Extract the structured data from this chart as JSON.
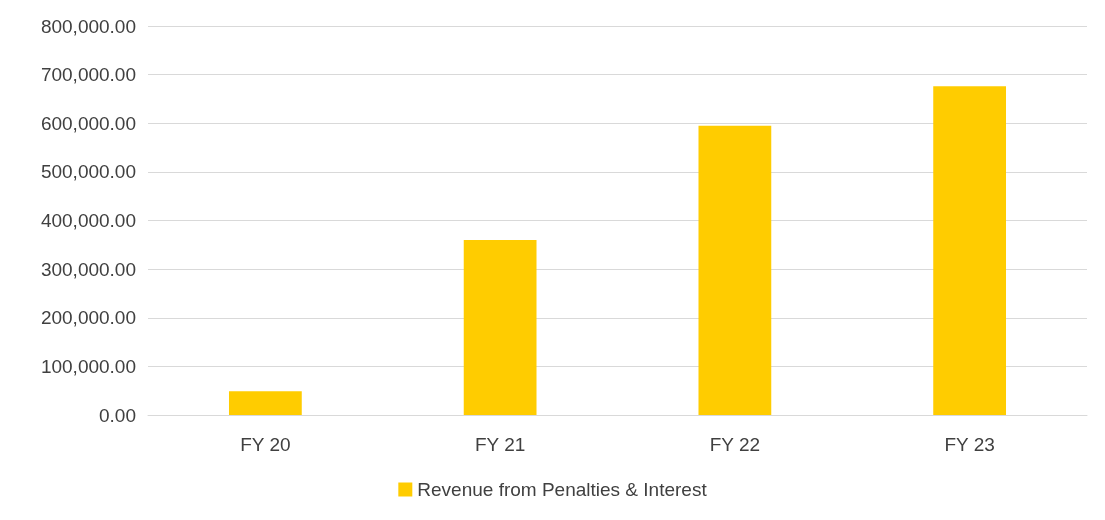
{
  "chart_data": {
    "type": "bar",
    "categories": [
      "FY 20",
      "FY 21",
      "FY 22",
      "FY 23"
    ],
    "series": [
      {
        "name": "Revenue from Penalties & Interest",
        "color": "#ffcc00",
        "values": [
          49000,
          360000,
          595000,
          676000
        ]
      }
    ],
    "ylim": [
      0,
      800000
    ],
    "yticks": [
      {
        "value": 0,
        "label": "0.00"
      },
      {
        "value": 100000,
        "label": "100,000.00"
      },
      {
        "value": 200000,
        "label": "200,000.00"
      },
      {
        "value": 300000,
        "label": "300,000.00"
      },
      {
        "value": 400000,
        "label": "400,000.00"
      },
      {
        "value": 500000,
        "label": "500,000.00"
      },
      {
        "value": 600000,
        "label": "600,000.00"
      },
      {
        "value": 700000,
        "label": "700,000.00"
      },
      {
        "value": 800000,
        "label": "800,000.00"
      }
    ],
    "grid": "y",
    "legend": "bottom"
  }
}
